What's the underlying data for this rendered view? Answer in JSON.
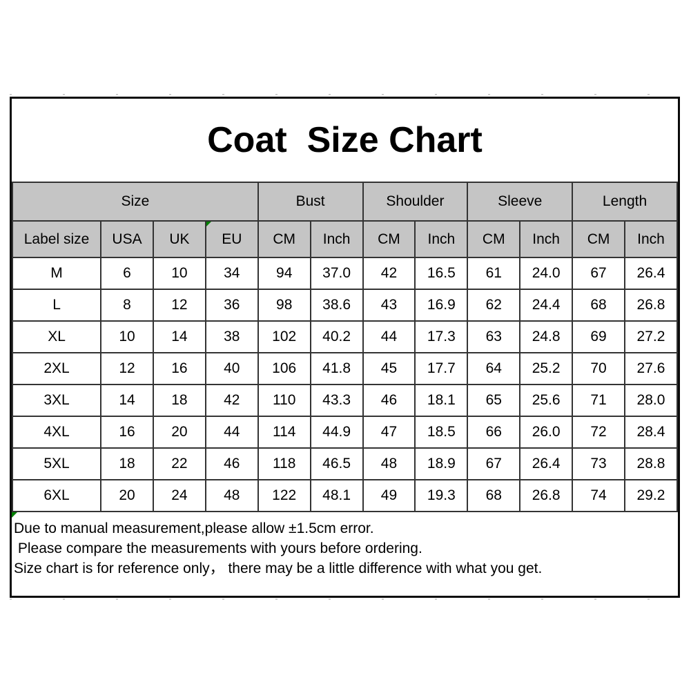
{
  "chart_data": {
    "type": "table",
    "title": "Coat  Size Chart",
    "group_headers": [
      {
        "label": "Size",
        "span": 4
      },
      {
        "label": "Bust",
        "span": 2
      },
      {
        "label": "Shoulder",
        "span": 2
      },
      {
        "label": "Sleeve",
        "span": 2
      },
      {
        "label": "Length",
        "span": 2
      }
    ],
    "sub_headers": [
      "Label size",
      "USA",
      "UK",
      "EU",
      "CM",
      "Inch",
      "CM",
      "Inch",
      "CM",
      "Inch",
      "CM",
      "Inch"
    ],
    "rows": [
      [
        "M",
        "6",
        "10",
        "34",
        "94",
        "37.0",
        "42",
        "16.5",
        "61",
        "24.0",
        "67",
        "26.4"
      ],
      [
        "L",
        "8",
        "12",
        "36",
        "98",
        "38.6",
        "43",
        "16.9",
        "62",
        "24.4",
        "68",
        "26.8"
      ],
      [
        "XL",
        "10",
        "14",
        "38",
        "102",
        "40.2",
        "44",
        "17.3",
        "63",
        "24.8",
        "69",
        "27.2"
      ],
      [
        "2XL",
        "12",
        "16",
        "40",
        "106",
        "41.8",
        "45",
        "17.7",
        "64",
        "25.2",
        "70",
        "27.6"
      ],
      [
        "3XL",
        "14",
        "18",
        "42",
        "110",
        "43.3",
        "46",
        "18.1",
        "65",
        "25.6",
        "71",
        "28.0"
      ],
      [
        "4XL",
        "16",
        "20",
        "44",
        "114",
        "44.9",
        "47",
        "18.5",
        "66",
        "26.0",
        "72",
        "28.4"
      ],
      [
        "5XL",
        "18",
        "22",
        "46",
        "118",
        "46.5",
        "48",
        "18.9",
        "67",
        "26.4",
        "73",
        "28.8"
      ],
      [
        "6XL",
        "20",
        "24",
        "48",
        "122",
        "48.1",
        "49",
        "19.3",
        "68",
        "26.8",
        "74",
        "29.2"
      ]
    ]
  },
  "notes": {
    "lines": [
      "Due to manual measurement,please allow ±1.5cm error.",
      " Please compare the measurements with yours before ordering.",
      "Size chart is for reference only， there may be a little difference with what you get."
    ]
  },
  "colors": {
    "header_bg": "#c5c5c5",
    "table_line": "#333333",
    "outer_border": "#0a0a0a",
    "error_indicator_green": "#008000"
  }
}
